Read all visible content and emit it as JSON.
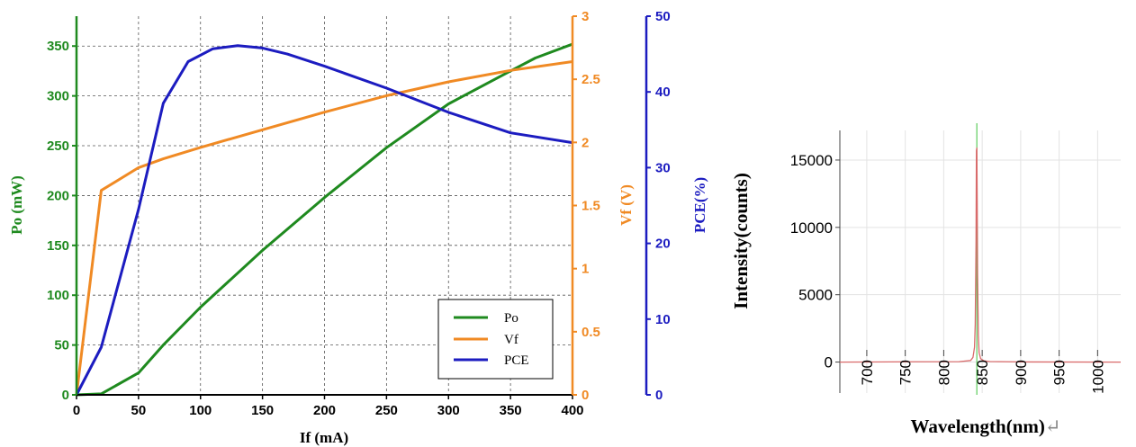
{
  "chart_data": [
    {
      "type": "line",
      "xlabel": "If (mA)",
      "x_ticks": [
        "0",
        "50",
        "100",
        "150",
        "200",
        "250",
        "300",
        "350",
        "400"
      ],
      "xlim": [
        0,
        400
      ],
      "grid": true,
      "legend_placement": "bottom-right",
      "axes": {
        "y1": {
          "label": "Po (mW)",
          "color": "#1f8a1f",
          "ylim": [
            0,
            380
          ],
          "ticks": [
            "0",
            "50",
            "100",
            "150",
            "200",
            "250",
            "300",
            "350"
          ]
        },
        "y2": {
          "label": "Vf (V)",
          "color": "#f08a24",
          "ylim": [
            0,
            3
          ],
          "ticks": [
            "0",
            "0.5",
            "1",
            "1.5",
            "2",
            "2.5",
            "3"
          ]
        },
        "y3": {
          "label": "PCE(%)",
          "color": "#1c1cc0",
          "ylim": [
            0,
            50
          ],
          "ticks": [
            "0",
            "10",
            "20",
            "30",
            "40",
            "50"
          ]
        }
      },
      "series": [
        {
          "name": "Po",
          "axis": "y1",
          "color": "#1f8a1f",
          "x": [
            0,
            20,
            50,
            70,
            100,
            150,
            200,
            250,
            300,
            350,
            370,
            400
          ],
          "y": [
            0,
            1,
            22,
            50,
            88,
            145,
            198,
            248,
            292,
            325,
            338,
            352
          ]
        },
        {
          "name": "Vf",
          "axis": "y2",
          "color": "#f08a24",
          "x": [
            0,
            20,
            50,
            70,
            100,
            150,
            200,
            250,
            300,
            350,
            400
          ],
          "y": [
            0,
            1.62,
            1.8,
            1.87,
            1.96,
            2.1,
            2.24,
            2.37,
            2.48,
            2.57,
            2.64
          ]
        },
        {
          "name": "PCE",
          "axis": "y3",
          "color": "#1c1cc0",
          "x": [
            0,
            20,
            50,
            70,
            90,
            110,
            130,
            150,
            170,
            200,
            250,
            300,
            350,
            400
          ],
          "y": [
            0,
            6.3,
            24.5,
            38.5,
            44,
            45.7,
            46.1,
            45.8,
            45,
            43.4,
            40.5,
            37.3,
            34.6,
            33.3
          ]
        }
      ]
    },
    {
      "type": "line",
      "xlabel": "Wavelength(nm)",
      "xlabel_suffix": "↵",
      "ylabel": "Intensity(counts)",
      "xlim": [
        665,
        1030
      ],
      "ylim": [
        -2300,
        17200
      ],
      "x_ticks": [
        "700",
        "750",
        "800",
        "850",
        "900",
        "950",
        "1000"
      ],
      "y_ticks": [
        "0",
        "5000",
        "10000",
        "15000"
      ],
      "grid": true,
      "series": [
        {
          "color": "#d96b6b",
          "x": [
            665,
            820,
            835,
            838,
            840,
            841,
            842,
            842.5,
            843,
            843.5,
            844,
            845,
            846,
            848,
            852,
            860,
            900,
            1030
          ],
          "y": [
            0,
            30,
            120,
            350,
            1100,
            2800,
            9000,
            15700,
            15900,
            12000,
            6500,
            2000,
            700,
            250,
            100,
            40,
            10,
            0
          ]
        }
      ],
      "marker_line": {
        "x": 843,
        "color": "#3cc23c"
      }
    }
  ]
}
